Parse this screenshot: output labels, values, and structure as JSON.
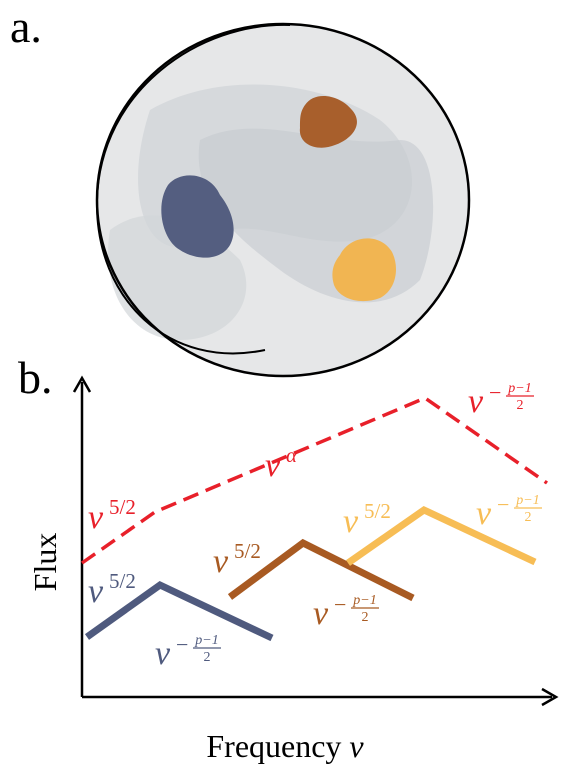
{
  "panel_a": {
    "label": "a."
  },
  "panel_b": {
    "label": "b.",
    "y_axis": "Flux",
    "x_axis": {
      "text": "Frequency",
      "symbol": "ν"
    },
    "labels": [
      {
        "base": "ν",
        "exp": "5/2"
      },
      {
        "base": "ν",
        "exp": "α"
      },
      {
        "base": "ν",
        "sign": "−",
        "num": "p−1",
        "den": "2"
      },
      {
        "base": "ν",
        "exp": "5/2"
      },
      {
        "base": "ν",
        "sign": "−",
        "num": "p−1",
        "den": "2"
      },
      {
        "base": "ν",
        "exp": "5/2"
      },
      {
        "base": "ν",
        "sign": "−",
        "num": "p−1",
        "den": "2"
      },
      {
        "base": "ν",
        "exp": "5/2"
      },
      {
        "base": "ν",
        "sign": "−",
        "num": "p−1",
        "den": "2"
      }
    ]
  }
}
